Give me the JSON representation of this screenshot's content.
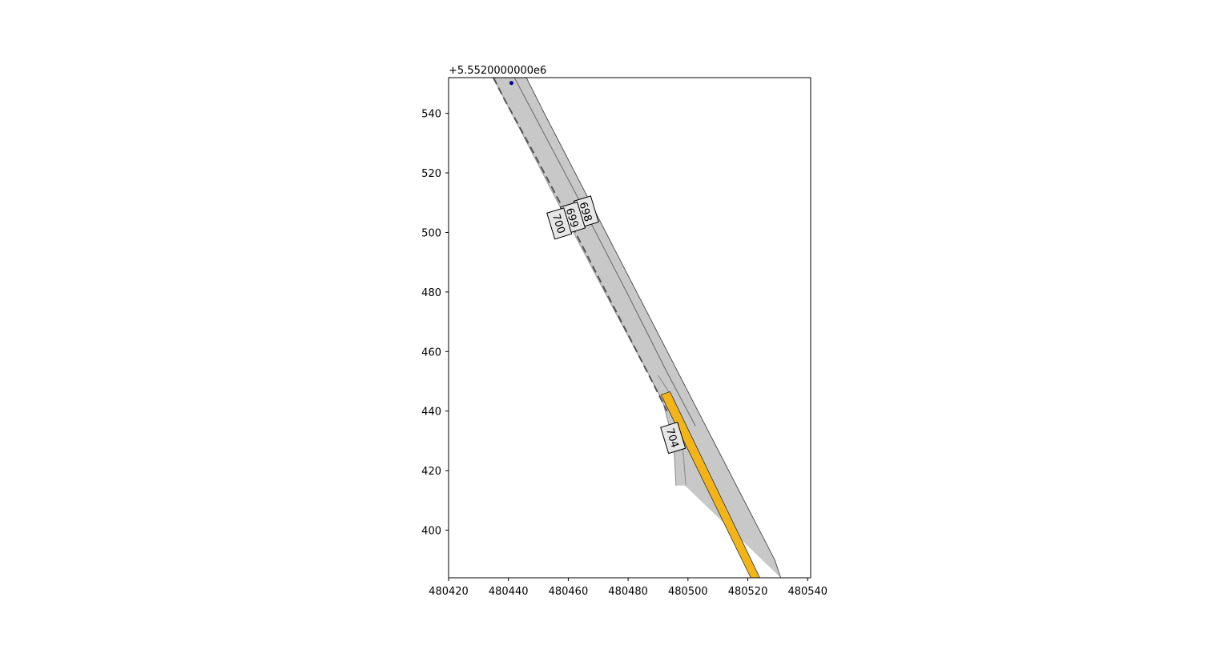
{
  "chart_data": {
    "type": "map",
    "offset_label": "+5.5520000000e6",
    "y_offset": 5552000,
    "xlim": [
      480420,
      480541
    ],
    "ylim": [
      384,
      552
    ],
    "x_ticks": [
      {
        "value": 480420,
        "label": "480420"
      },
      {
        "value": 480440,
        "label": "480440"
      },
      {
        "value": 480460,
        "label": "480460"
      },
      {
        "value": 480480,
        "label": "480480"
      },
      {
        "value": 480500,
        "label": "480500"
      },
      {
        "value": 480520,
        "label": "480520"
      },
      {
        "value": 480540,
        "label": "480540"
      }
    ],
    "y_ticks": [
      {
        "value": 400,
        "label": "400"
      },
      {
        "value": 420,
        "label": "420"
      },
      {
        "value": 440,
        "label": "440"
      },
      {
        "value": 460,
        "label": "460"
      },
      {
        "value": 480,
        "label": "480"
      },
      {
        "value": 500,
        "label": "500"
      },
      {
        "value": 520,
        "label": "520"
      },
      {
        "value": 540,
        "label": "540"
      }
    ],
    "road_band": {
      "color": "#c8c8c8",
      "edge_color": "#555555",
      "left_edge": [
        [
          480434.7,
          552
        ],
        [
          480436.5,
          549
        ],
        [
          480456.0,
          511
        ],
        [
          480475.0,
          474.5
        ],
        [
          480490.0,
          446.5
        ],
        [
          480495.0,
          436
        ],
        [
          480497.5,
          427
        ],
        [
          480499.0,
          415
        ]
      ],
      "right_edge": [
        [
          480446.0,
          552
        ],
        [
          480452.0,
          540
        ],
        [
          480470.0,
          505
        ],
        [
          480490.0,
          466
        ],
        [
          480510.0,
          427
        ],
        [
          480529.0,
          390
        ],
        [
          480531.0,
          384
        ]
      ]
    },
    "lane_dividers": [
      {
        "style": "dashed",
        "color": "#555555",
        "points": [
          [
            480435.0,
            552
          ],
          [
            480438.5,
            545
          ],
          [
            480448.0,
            527.5
          ],
          [
            480458.0,
            508.5
          ],
          [
            480468.0,
            489
          ],
          [
            480478.0,
            469.5
          ],
          [
            480488.0,
            450
          ],
          [
            480493.0,
            440
          ]
        ]
      },
      {
        "style": "solid",
        "color": "#777777",
        "points": [
          [
            480442.0,
            552
          ],
          [
            480462.0,
            514
          ],
          [
            480480.0,
            479
          ],
          [
            480493.0,
            453
          ],
          [
            480502.5,
            435
          ]
        ]
      }
    ],
    "ramp": {
      "color": "#c8c8c8",
      "edge_color": "#888888",
      "left_edge": [
        [
          480487.0,
          452
        ],
        [
          480491.5,
          443.5
        ],
        [
          480494.0,
          434
        ],
        [
          480495.5,
          425
        ],
        [
          480496.0,
          415
        ]
      ],
      "right_edge": [
        [
          480490.0,
          452
        ],
        [
          480495.5,
          443.5
        ],
        [
          480497.5,
          434
        ],
        [
          480498.5,
          425
        ],
        [
          480499.3,
          415
        ]
      ]
    },
    "highlight_lane": {
      "color": "#f2b418",
      "edge_color": "#333333",
      "polygon": [
        [
          480491.0,
          445.5
        ],
        [
          480494.0,
          446.5
        ],
        [
          480524.0,
          384
        ],
        [
          480521.0,
          384
        ]
      ]
    },
    "point": {
      "x": 480441.0,
      "y": 550.2,
      "color": "#00007f"
    },
    "lane_labels": [
      {
        "text": "698",
        "x": 480466.0,
        "y": 507.0,
        "rotation": -107
      },
      {
        "text": "699",
        "x": 480461.5,
        "y": 505.0,
        "rotation": -107
      },
      {
        "text": "700",
        "x": 480457.0,
        "y": 503.0,
        "rotation": -107
      },
      {
        "text": "704",
        "x": 480495.0,
        "y": 431.0,
        "rotation": -107
      }
    ]
  }
}
